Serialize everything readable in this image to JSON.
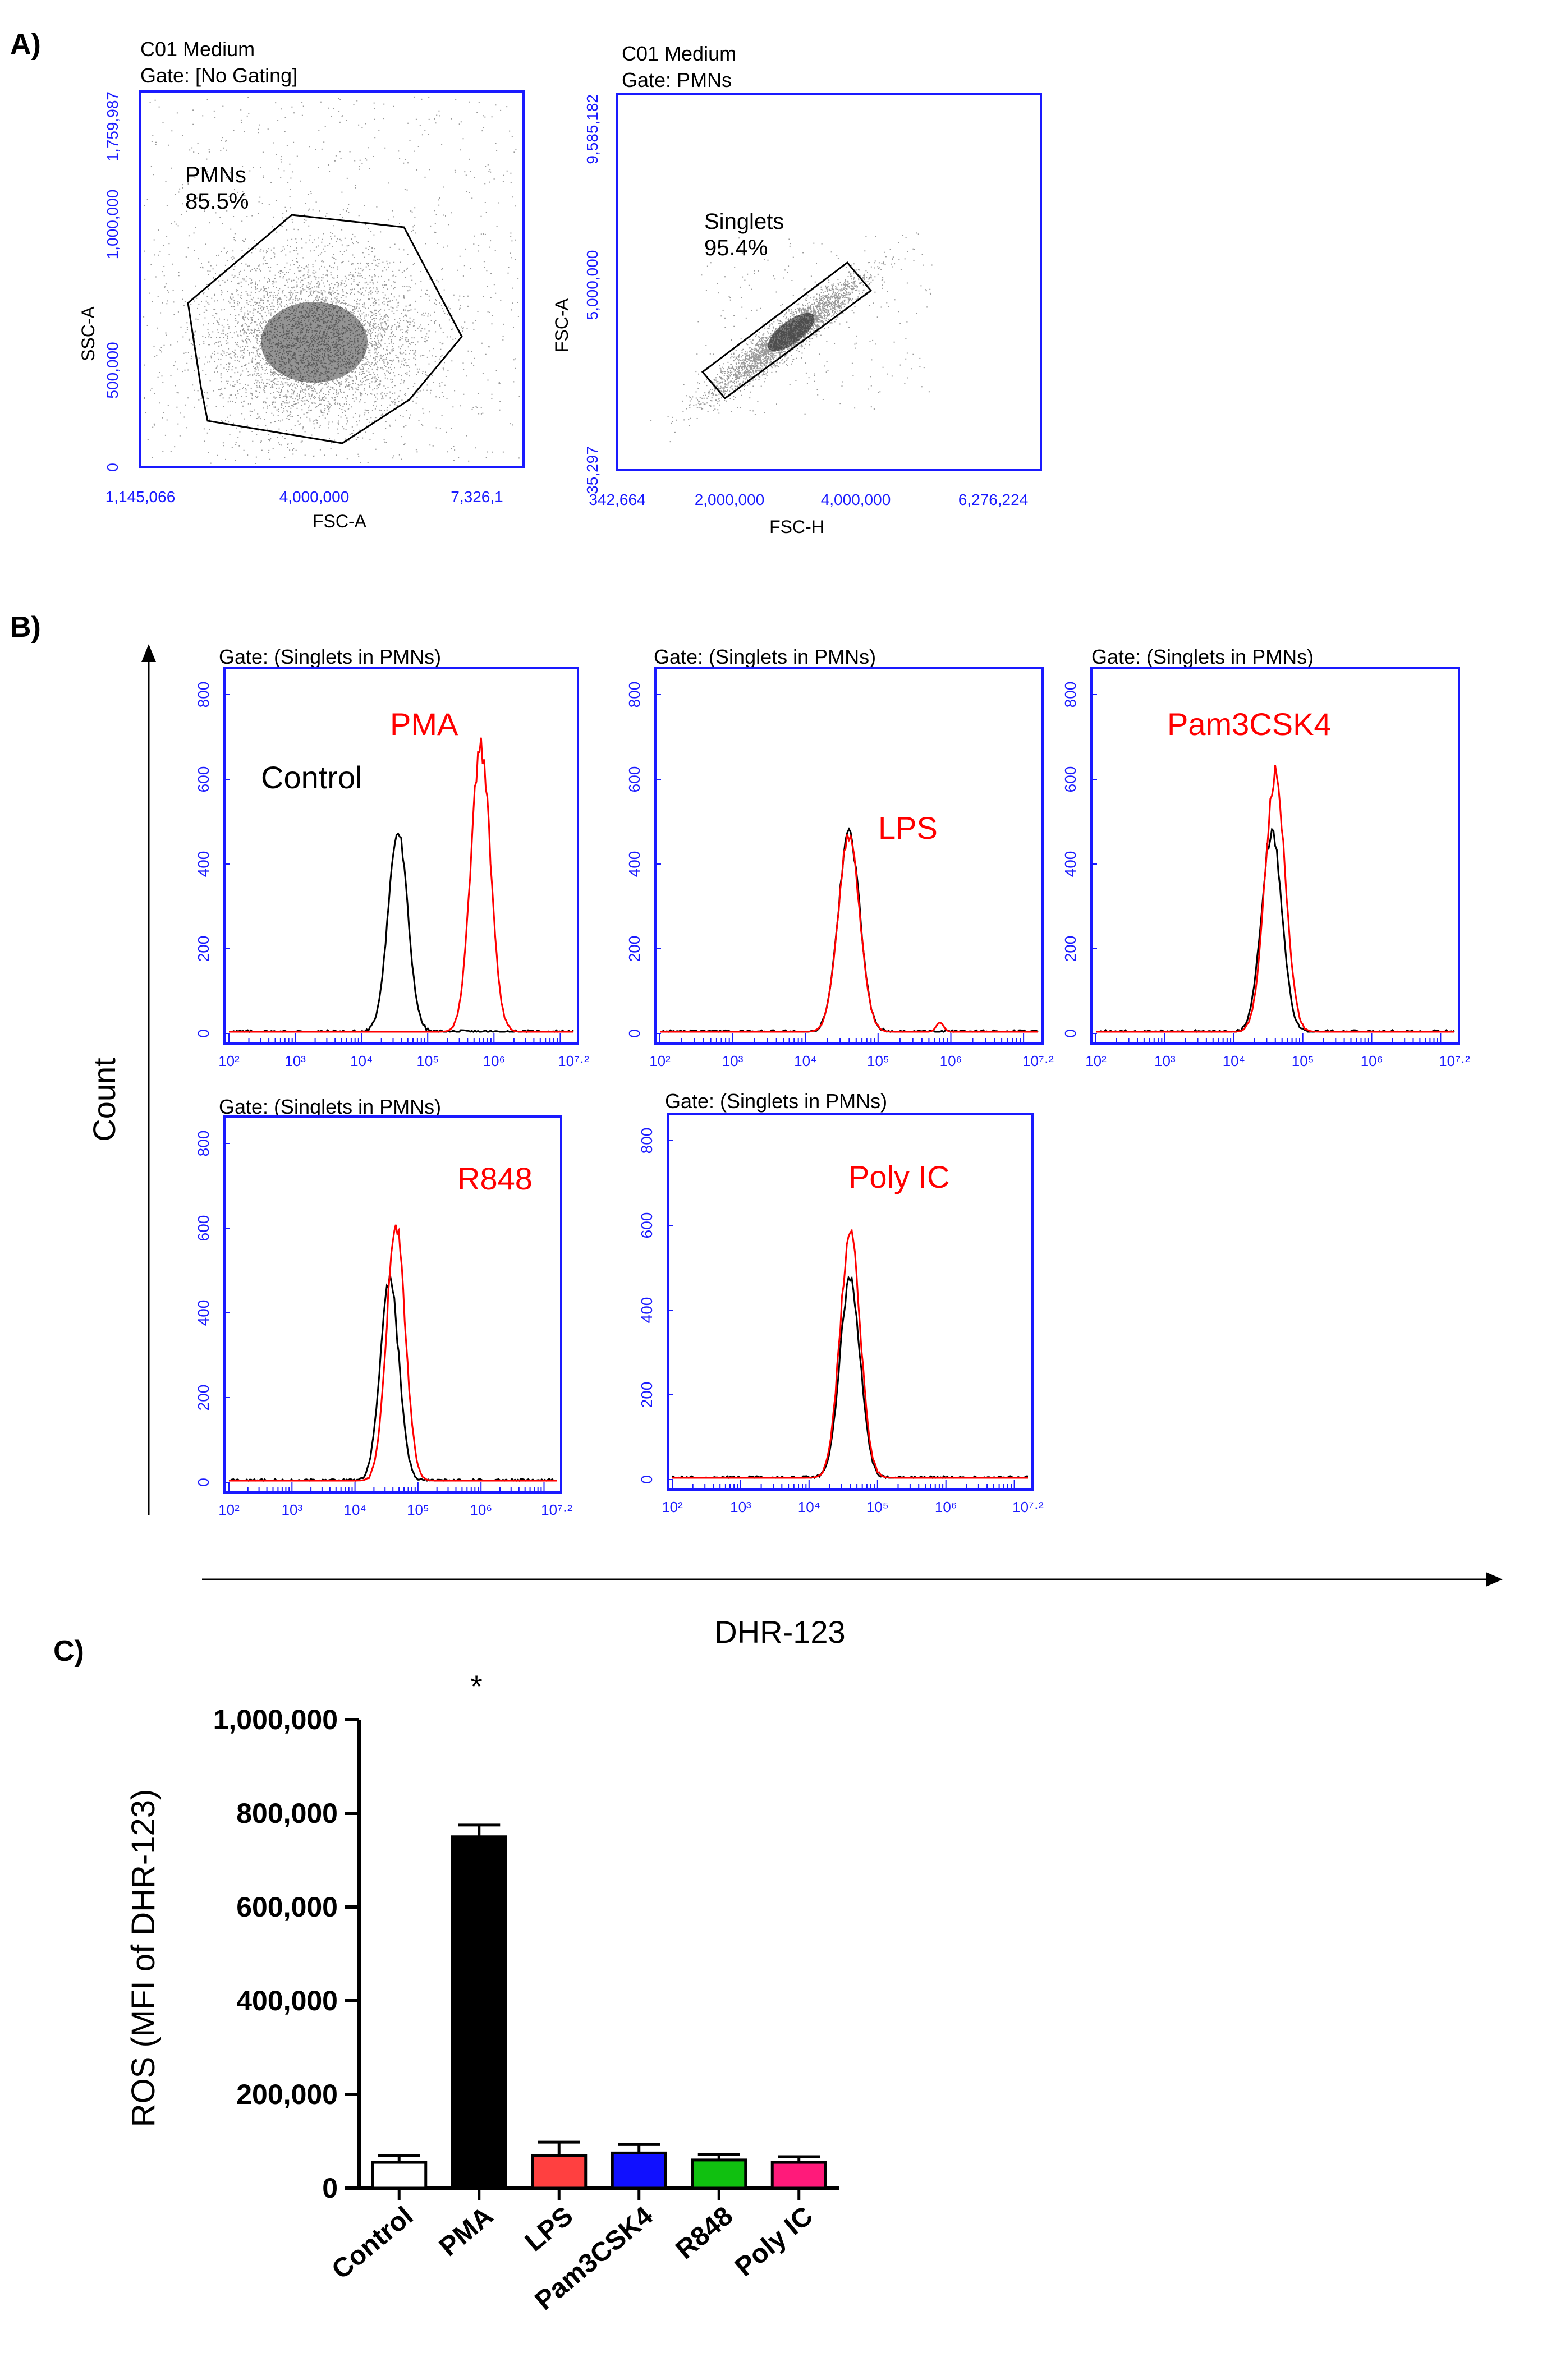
{
  "panels": {
    "a": "A)",
    "b": "B)",
    "c": "C)"
  },
  "panelA": [
    {
      "title": "C01 Medium",
      "gate": "Gate: [No Gating]",
      "ylabel": "SSC-A",
      "xlabel": "FSC-A",
      "yticks": [
        "1,759,987",
        "1,000,000",
        "500,000",
        "0"
      ],
      "xticks": [
        "1,145,066",
        "4,000,000",
        "7,326,1"
      ],
      "gate_label": "PMNs",
      "gate_pct": "85.5%"
    },
    {
      "title": "C01 Medium",
      "gate": "Gate: PMNs",
      "ylabel": "FSC-A",
      "xlabel": "FSC-H",
      "yticks": [
        "9,585,182",
        "5,000,000",
        "35,297"
      ],
      "xticks": [
        "342,664",
        "2,000,000",
        "4,000,000",
        "6,276,224"
      ],
      "gate_label": "Singlets",
      "gate_pct": "95.4%"
    }
  ],
  "panelB": {
    "gate": "Gate: (Singlets in PMNs)",
    "yticks": [
      "800",
      "600",
      "400",
      "200",
      "0"
    ],
    "xticks": [
      "10²",
      "10³",
      "10⁴",
      "10⁵",
      "10⁶",
      "10⁷·²"
    ],
    "y_axis_label": "Count",
    "x_axis_label": "DHR-123",
    "control_label": "Control",
    "control_color": "#000000",
    "treated_color": "#ff0000",
    "histograms": [
      {
        "treatment": "PMA",
        "control_peak_log": 4.55,
        "control_height": 470,
        "treated_peak_log": 5.8,
        "treated_height": 670
      },
      {
        "treatment": "LPS",
        "control_peak_log": 4.6,
        "control_height": 470,
        "treated_peak_log": 4.6,
        "treated_height": 460
      },
      {
        "treatment": "Pam3CSK4",
        "control_peak_log": 4.55,
        "control_height": 470,
        "treated_peak_log": 4.6,
        "treated_height": 610
      },
      {
        "treatment": "R848",
        "control_peak_log": 4.55,
        "control_height": 470,
        "treated_peak_log": 4.65,
        "treated_height": 600
      },
      {
        "treatment": "Poly IC",
        "control_peak_log": 4.6,
        "control_height": 470,
        "treated_peak_log": 4.6,
        "treated_height": 580
      }
    ]
  },
  "chart_data": [
    {
      "type": "histogram",
      "title": "Gate: (Singlets in PMNs)",
      "xlabel": "DHR-123",
      "ylabel": "Count",
      "xscale": "log",
      "xlim": [
        2,
        7.2
      ],
      "ylim": [
        0,
        800
      ],
      "series": [
        {
          "name": "Control",
          "color": "#000000"
        },
        {
          "name": "PMA",
          "color": "#ff0000"
        },
        {
          "name": "LPS",
          "color": "#ff0000"
        },
        {
          "name": "Pam3CSK4",
          "color": "#ff0000"
        },
        {
          "name": "R848",
          "color": "#ff0000"
        },
        {
          "name": "Poly IC",
          "color": "#ff0000"
        }
      ]
    },
    {
      "type": "bar",
      "title": "",
      "ylabel": "ROS (MFI of DHR-123)",
      "xlabel": "",
      "categories": [
        "Control",
        "PMA",
        "LPS",
        "Pam3CSK4",
        "R848",
        "Poly IC"
      ],
      "values": [
        55000,
        750000,
        70000,
        75000,
        60000,
        55000
      ],
      "errors": [
        15000,
        25000,
        28000,
        18000,
        12000,
        12000
      ],
      "colors": [
        "#ffffff",
        "#000000",
        "#ff4040",
        "#1010ff",
        "#10c010",
        "#ff1a7a"
      ],
      "ylim": [
        0,
        1000000
      ],
      "yticks": [
        "1,000,000",
        "800,000",
        "600,000",
        "400,000",
        "200,000",
        "0"
      ],
      "annotation": "*"
    }
  ]
}
